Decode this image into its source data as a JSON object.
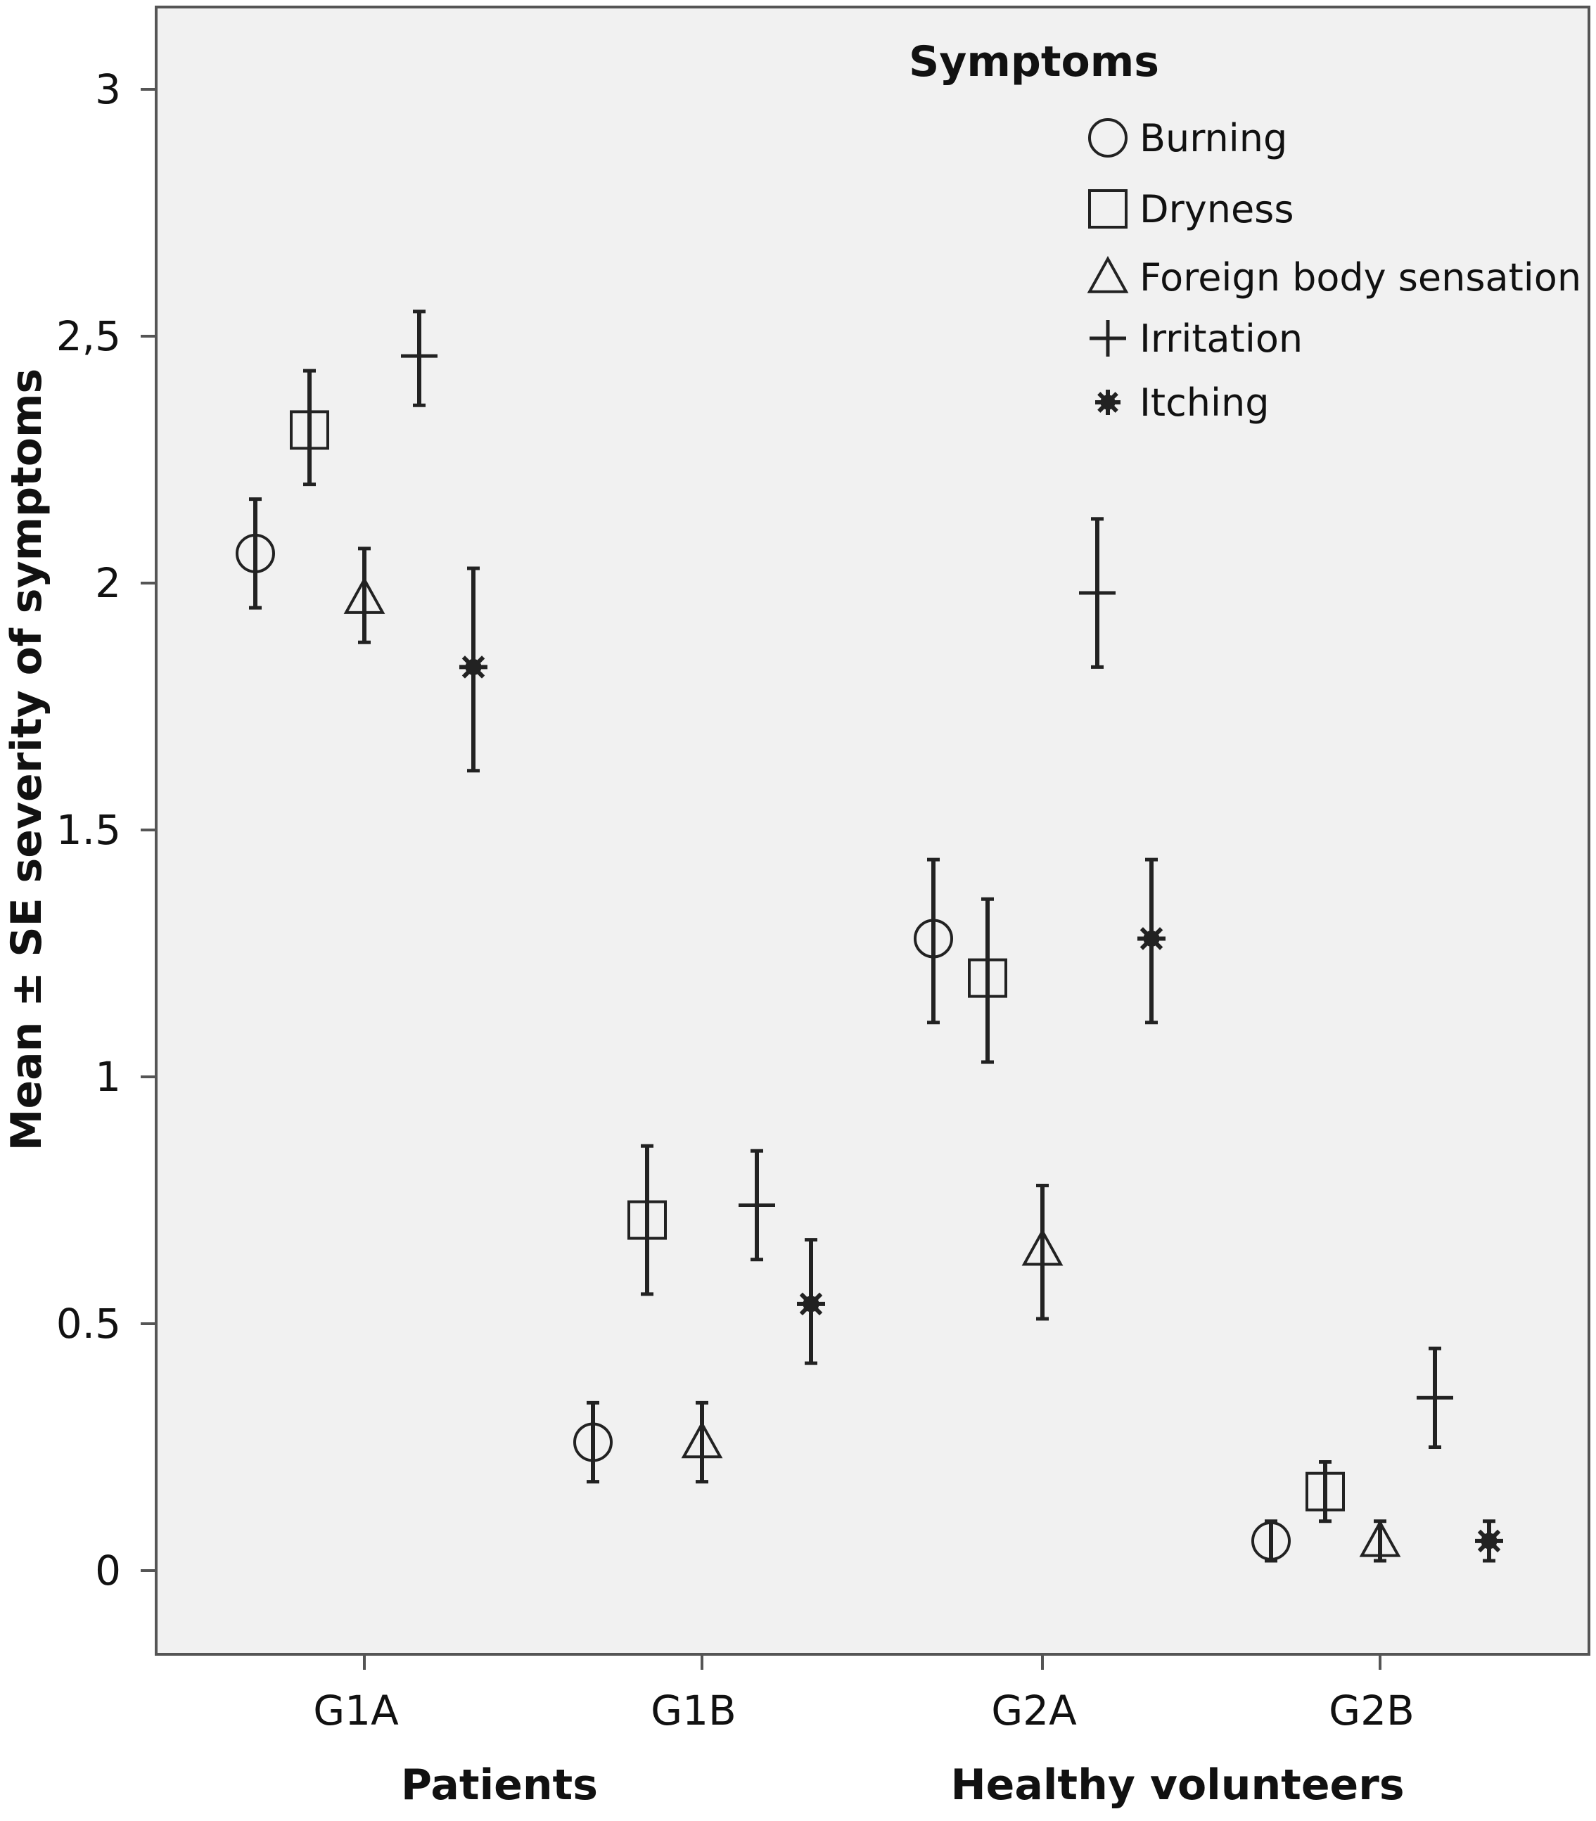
{
  "chart_data": {
    "type": "scatter",
    "ylabel": "Mean ± SE severity of symptoms",
    "ylim": [
      -0.17,
      3.17
    ],
    "yticks": [
      {
        "value": 0,
        "label": "0"
      },
      {
        "value": 0.5,
        "label": "0.5"
      },
      {
        "value": 1,
        "label": "1"
      },
      {
        "value": 1.5,
        "label": "1.5"
      },
      {
        "value": 2,
        "label": "2"
      },
      {
        "value": 2.5,
        "label": "2,5"
      },
      {
        "value": 3,
        "label": "3"
      }
    ],
    "categories": [
      "G1A",
      "G1B",
      "G2A",
      "G2B"
    ],
    "group_labels": [
      {
        "label": "Patients",
        "categories": [
          "G1A",
          "G1B"
        ]
      },
      {
        "label": "Healthy volunteers",
        "categories": [
          "G2A",
          "G2B"
        ]
      }
    ],
    "legend": {
      "title": "Symptoms",
      "position": "top-right"
    },
    "series": [
      {
        "name": "Burning",
        "marker": "circle",
        "values": [
          2.06,
          0.26,
          1.28,
          0.06
        ],
        "lower": [
          1.95,
          0.18,
          1.11,
          0.02
        ],
        "upper": [
          2.17,
          0.34,
          1.44,
          0.1
        ]
      },
      {
        "name": "Dryness",
        "marker": "square",
        "values": [
          2.31,
          0.71,
          1.2,
          0.16
        ],
        "lower": [
          2.2,
          0.56,
          1.03,
          0.1
        ],
        "upper": [
          2.43,
          0.86,
          1.36,
          0.22
        ]
      },
      {
        "name": "Foreign body sensation",
        "marker": "triangle",
        "values": [
          1.97,
          0.26,
          0.65,
          0.06
        ],
        "lower": [
          1.88,
          0.18,
          0.51,
          0.02
        ],
        "upper": [
          2.07,
          0.34,
          0.78,
          0.1
        ]
      },
      {
        "name": "Irritation",
        "marker": "plus",
        "values": [
          2.46,
          0.74,
          1.98,
          0.35
        ],
        "lower": [
          2.36,
          0.63,
          1.83,
          0.25
        ],
        "upper": [
          2.55,
          0.85,
          2.13,
          0.45
        ]
      },
      {
        "name": "Itching",
        "marker": "asterisk",
        "values": [
          1.83,
          0.54,
          1.28,
          0.06
        ],
        "lower": [
          1.62,
          0.42,
          1.11,
          0.02
        ],
        "upper": [
          2.03,
          0.67,
          1.44,
          0.1
        ]
      }
    ]
  }
}
